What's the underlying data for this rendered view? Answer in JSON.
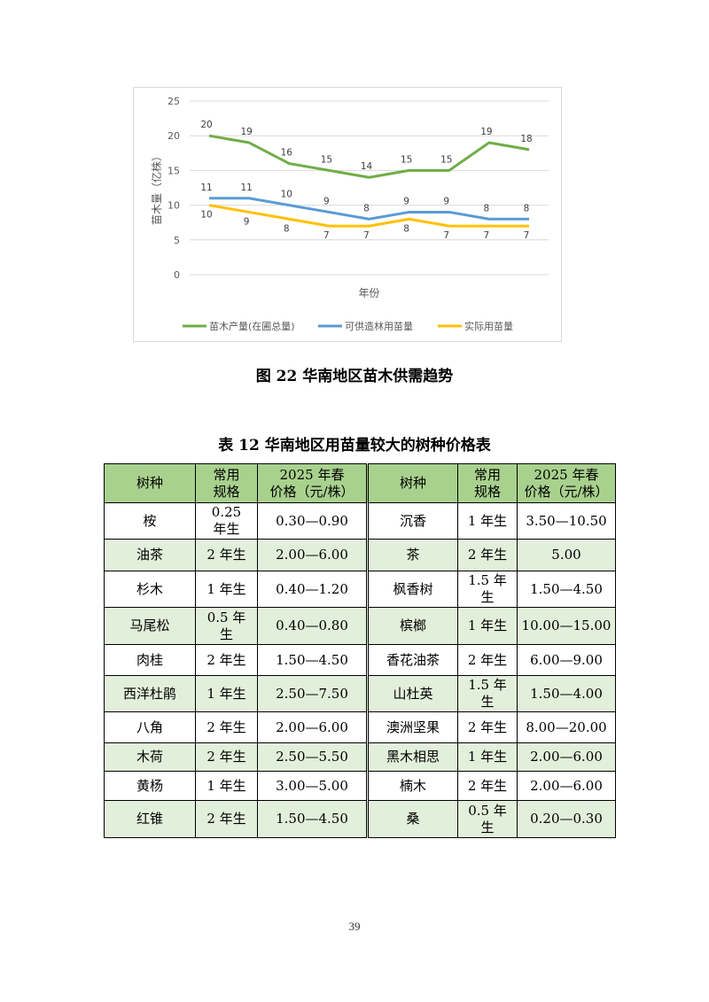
{
  "chart_data": {
    "type": "line",
    "title": "",
    "xlabel": "年份",
    "ylabel": "苗木量（亿株）",
    "ylim": [
      0,
      25
    ],
    "yticks": [
      0,
      5,
      10,
      15,
      20,
      25
    ],
    "grid": true,
    "legend_position": "bottom",
    "x": [
      1,
      2,
      3,
      4,
      5,
      6,
      7,
      8,
      9
    ],
    "series": [
      {
        "name": "苗木产量(在圃总量)",
        "color": "#70ad47",
        "values": [
          20,
          19,
          16,
          15,
          14,
          15,
          15,
          19,
          18
        ]
      },
      {
        "name": "可供造林用苗量",
        "color": "#5b9bd5",
        "values": [
          11,
          11,
          10,
          9,
          8,
          9,
          9,
          8,
          8
        ]
      },
      {
        "name": "实际用苗量",
        "color": "#ffc000",
        "values": [
          10,
          9,
          8,
          7,
          7,
          8,
          7,
          7,
          7
        ]
      }
    ]
  },
  "figure_caption": "图 22  华南地区苗木供需趋势",
  "table_caption": "表 12  华南地区用苗量较大的树种价格表",
  "table": {
    "headers": [
      "树种",
      "常用\n规格",
      "2025 年春\n价格（元/株）",
      "树种",
      "常用\n规格",
      "2025 年春\n价格（元/株）"
    ],
    "rows": [
      [
        "桉",
        "0.25\n年生",
        "0.30—0.90",
        "沉香",
        "1 年生",
        "3.50—10.50"
      ],
      [
        "油茶",
        "2 年生",
        "2.00—6.00",
        "茶",
        "2 年生",
        "5.00"
      ],
      [
        "杉木",
        "1 年生",
        "0.40—1.20",
        "枫香树",
        "1.5 年\n生",
        "1.50—4.50"
      ],
      [
        "马尾松",
        "0.5 年\n生",
        "0.40—0.80",
        "槟榔",
        "1 年生",
        "10.00—15.00"
      ],
      [
        "肉桂",
        "2 年生",
        "1.50—4.50",
        "香花油茶",
        "2 年生",
        "6.00—9.00"
      ],
      [
        "西洋杜鹃",
        "1 年生",
        "2.50—7.50",
        "山杜英",
        "1.5 年\n生",
        "1.50—4.00"
      ],
      [
        "八角",
        "2 年生",
        "2.00—6.00",
        "澳洲坚果",
        "2 年生",
        "8.00—20.00"
      ],
      [
        "木荷",
        "2 年生",
        "2.50—5.50",
        "黑木相思",
        "1 年生",
        "2.00—6.00"
      ],
      [
        "黄杨",
        "1 年生",
        "3.00—5.00",
        "楠木",
        "2 年生",
        "2.00—6.00"
      ],
      [
        "红锥",
        "2 年生",
        "1.50—4.50",
        "桑",
        "0.5 年\n生",
        "0.20—0.30"
      ]
    ]
  },
  "page_number": "39"
}
